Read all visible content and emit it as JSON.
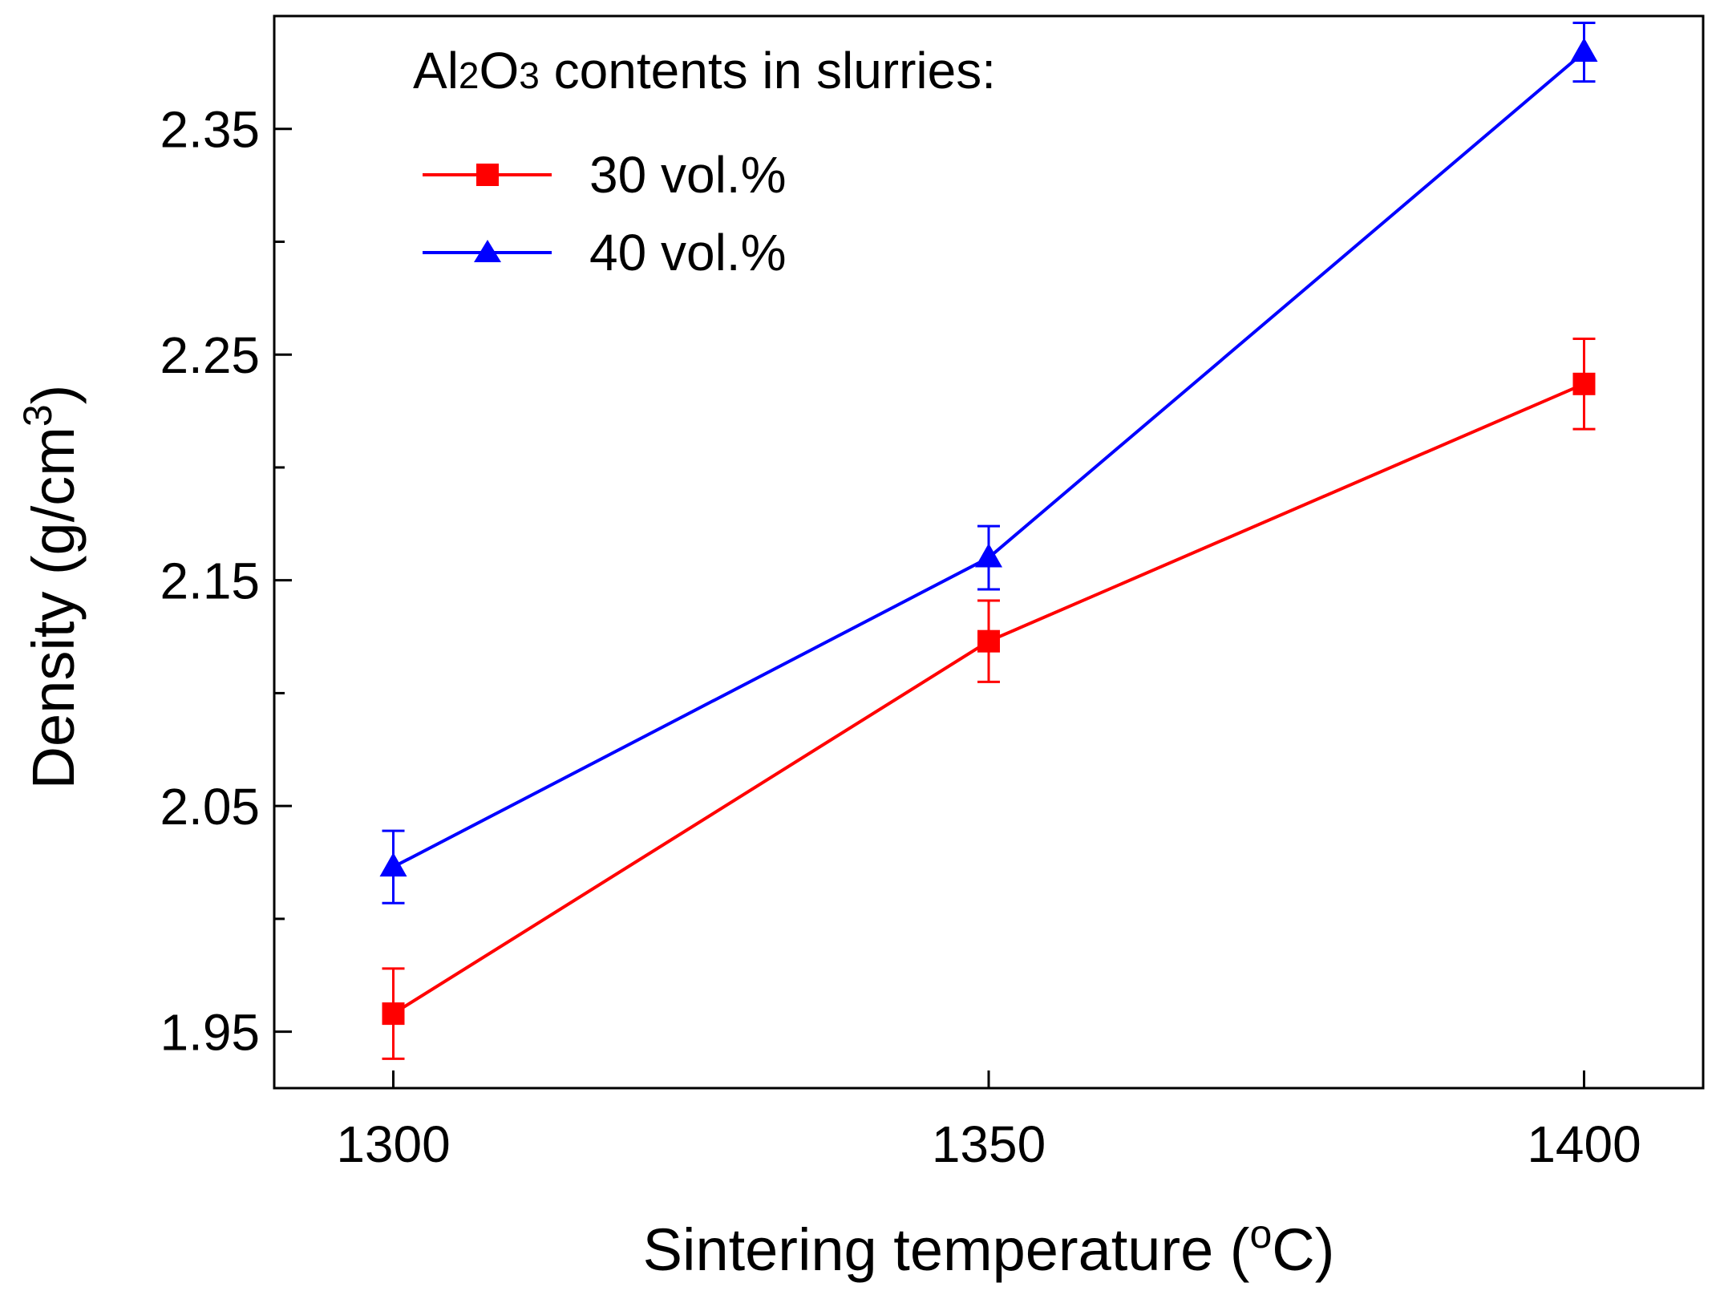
{
  "chart_data": {
    "type": "line",
    "title": "",
    "xlabel": "Sintering temperature (°C)",
    "xlabel_parts": {
      "main": "Sintering temperature (",
      "sup": "o",
      "tail": "C)"
    },
    "ylabel": "Density (g/cm3)",
    "ylabel_parts": {
      "main": "Density (g/cm",
      "sup": "3",
      "tail": ")"
    },
    "x": [
      1300,
      1350,
      1400
    ],
    "xlim": [
      1290,
      1410
    ],
    "ylim": [
      1.925,
      2.4
    ],
    "x_ticks": [
      1300,
      1350,
      1400
    ],
    "x_tick_labels": [
      "1300",
      "1350",
      "1400"
    ],
    "y_major_ticks": [
      1.95,
      2.05,
      2.15,
      2.25,
      2.35
    ],
    "y_tick_labels": [
      "1.95",
      "2.05",
      "2.15",
      "2.25",
      "2.35"
    ],
    "y_minor_ticks": [
      2.0,
      2.1,
      2.2,
      2.3,
      2.4
    ],
    "grid": false,
    "legend": {
      "position": "top-left",
      "title_parts": [
        "Al",
        "2",
        "O",
        "3",
        " contents in slurries:"
      ]
    },
    "series": [
      {
        "name": "30 vol.%",
        "color": "#ff0000",
        "marker": "square",
        "values": [
          1.958,
          2.123,
          2.237
        ],
        "errors": [
          0.02,
          0.018,
          0.02
        ]
      },
      {
        "name": "40 vol.%",
        "color": "#0000ff",
        "marker": "triangle",
        "values": [
          2.023,
          2.16,
          2.384
        ],
        "errors": [
          0.016,
          0.014,
          0.013
        ]
      }
    ]
  }
}
